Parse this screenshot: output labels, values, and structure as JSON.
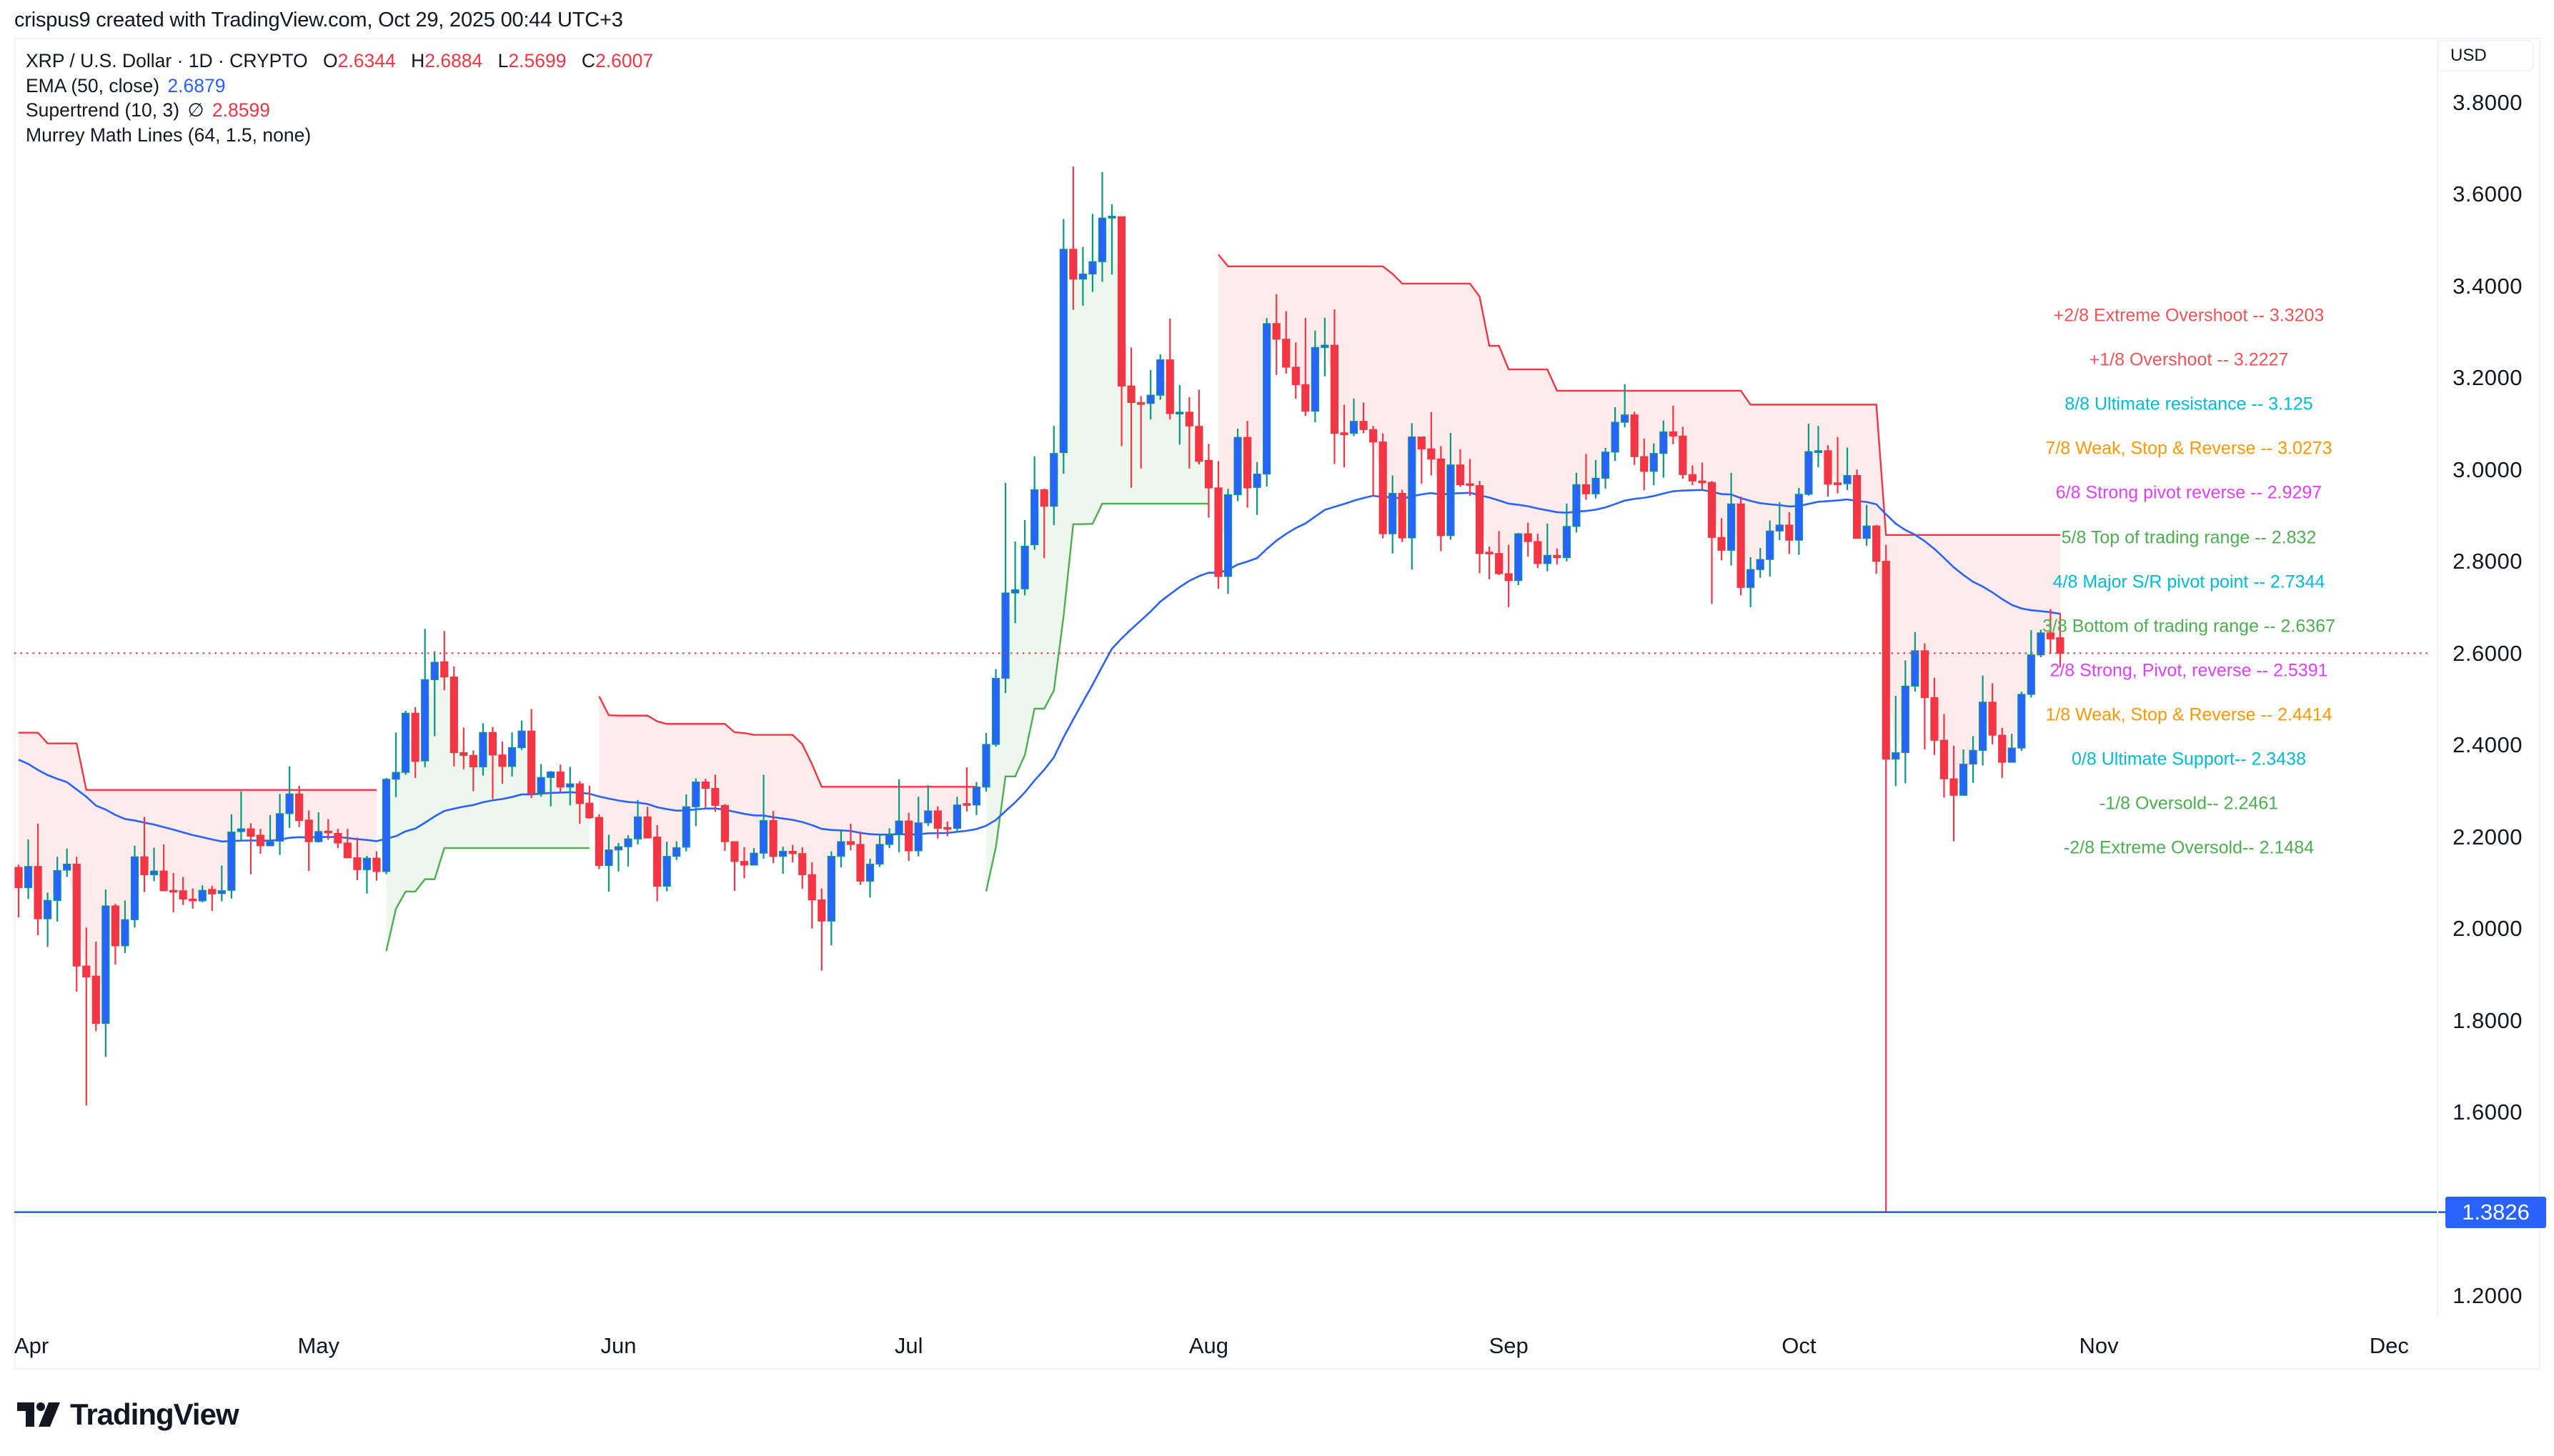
{
  "attribution": "crispus9 created with TradingView.com, Oct 29, 2025 00:44 UTC+3",
  "legend": {
    "symbol": "XRP / U.S. Dollar · 1D · CRYPTO",
    "ohlc": {
      "o_label": "O",
      "o": "2.6344",
      "h_label": "H",
      "h": "2.6884",
      "l_label": "L",
      "l": "2.5699",
      "c_label": "C",
      "c": "2.6007"
    },
    "ema": {
      "label": "EMA (50, close)",
      "value": "2.6879"
    },
    "supertrend": {
      "label": "Supertrend (10, 3)",
      "symbol": "∅",
      "value": "2.8599"
    },
    "murrey": {
      "label": "Murrey Math Lines (64, 1.5, none)"
    }
  },
  "currency": "USD",
  "price_axis": [
    "3.8000",
    "3.6000",
    "3.4000",
    "3.2000",
    "3.0000",
    "2.8000",
    "2.6000",
    "2.4000",
    "2.2000",
    "2.0000",
    "1.8000",
    "1.6000",
    "1.2000"
  ],
  "price_tag": {
    "value": "1.3826",
    "price": 1.3826,
    "color": "#2962ff"
  },
  "time_axis": [
    {
      "label": "Apr",
      "index": 1
    },
    {
      "label": "May",
      "index": 31
    },
    {
      "label": "Jun",
      "index": 62
    },
    {
      "label": "Jul",
      "index": 92
    },
    {
      "label": "Aug",
      "index": 123
    },
    {
      "label": "Sep",
      "index": 154
    },
    {
      "label": "Oct",
      "index": 184
    },
    {
      "label": "Nov",
      "index": 215
    },
    {
      "label": "Dec",
      "index": 245
    }
  ],
  "logo": {
    "text": "TradingView"
  },
  "colors": {
    "up_body": "#2962ff",
    "up_wick": "#089981",
    "down": "#f23645",
    "ema": "#2962ff",
    "st_bear": "#f23645",
    "st_bull": "#4caf50",
    "st_bear_fill": "rgba(242,54,69,0.10)",
    "st_bull_fill": "rgba(76,175,80,0.10)",
    "last_price_line": "#f23645"
  },
  "murrey_lines": [
    {
      "label": "+2/8 Extreme Overshoot --  3.3203",
      "color": "#f05457"
    },
    {
      "label": "+1/8 Overshoot --  3.2227",
      "color": "#f05457"
    },
    {
      "label": "8/8 Ultimate resistance --  3.125",
      "color": "#00bcd4"
    },
    {
      "label": "7/8 Weak, Stop & Reverse --  3.0273",
      "color": "#ff9800"
    },
    {
      "label": "6/8 Strong pivot reverse --  2.9297",
      "color": "#e040fb"
    },
    {
      "label": "5/8 Top of trading range --  2.832",
      "color": "#4caf50"
    },
    {
      "label": "4/8 Major S/R pivot point --  2.7344",
      "color": "#00bcd4"
    },
    {
      "label": "3/8 Bottom of trading range --  2.6367",
      "color": "#4caf50"
    },
    {
      "label": "2/8 Strong, Pivot, reverse --  2.5391",
      "color": "#e040fb"
    },
    {
      "label": "1/8 Weak, Stop & Reverse --  2.4414",
      "color": "#ff9800"
    },
    {
      "label": "0/8 Ultimate Support--  2.3438",
      "color": "#00bcd4"
    },
    {
      "label": "-1/8 Oversold--  2.2461",
      "color": "#4caf50"
    },
    {
      "label": "-2/8 Extreme Oversold--  2.1484",
      "color": "#4caf50"
    }
  ],
  "chart_data": {
    "type": "candlestick",
    "title": "XRP / U.S. Dollar · 1D · CRYPTO",
    "xlabel": "",
    "ylabel": "USD",
    "ylim": [
      1.2,
      3.8
    ],
    "x_start": "2025-03-31",
    "x_end": "2025-10-28",
    "last": {
      "open": 2.6344,
      "high": 2.6884,
      "low": 2.5699,
      "close": 2.6007
    },
    "indicators": {
      "ema": {
        "period": 50,
        "source": "close",
        "last": 2.6879,
        "seed": 2.38
      },
      "supertrend": {
        "atr_period": 10,
        "factor": 3,
        "last": 2.8599
      },
      "murrey": {
        "params": "64, 1.5, none",
        "levels": [
          3.3203,
          3.2227,
          3.125,
          3.0273,
          2.9297,
          2.832,
          2.7344,
          2.6367,
          2.5391,
          2.4414,
          2.3438,
          2.2461,
          2.1484
        ]
      },
      "horizontal_line": 1.3826
    },
    "ohlc": [
      [
        2.134,
        2.14,
        2.025,
        2.09
      ],
      [
        2.09,
        2.195,
        2.065,
        2.136
      ],
      [
        2.136,
        2.229,
        1.986,
        2.022
      ],
      [
        2.022,
        2.079,
        1.961,
        2.062
      ],
      [
        2.062,
        2.157,
        2.016,
        2.127
      ],
      [
        2.128,
        2.175,
        2.113,
        2.141
      ],
      [
        2.141,
        2.157,
        1.863,
        1.919
      ],
      [
        1.919,
        2.003,
        1.615,
        1.895
      ],
      [
        1.897,
        1.972,
        1.777,
        1.794
      ],
      [
        1.794,
        2.086,
        1.721,
        2.05
      ],
      [
        2.05,
        2.055,
        1.922,
        1.963
      ],
      [
        1.963,
        2.062,
        1.947,
        2.02
      ],
      [
        2.02,
        2.181,
        2.003,
        2.157
      ],
      [
        2.157,
        2.244,
        2.08,
        2.118
      ],
      [
        2.118,
        2.177,
        2.104,
        2.126
      ],
      [
        2.126,
        2.184,
        2.083,
        2.083
      ],
      [
        2.084,
        2.122,
        2.036,
        2.081
      ],
      [
        2.083,
        2.113,
        2.052,
        2.065
      ],
      [
        2.065,
        2.088,
        2.044,
        2.061
      ],
      [
        2.061,
        2.095,
        2.058,
        2.084
      ],
      [
        2.086,
        2.094,
        2.039,
        2.076
      ],
      [
        2.077,
        2.138,
        2.06,
        2.083
      ],
      [
        2.084,
        2.25,
        2.066,
        2.211
      ],
      [
        2.212,
        2.3,
        2.191,
        2.218
      ],
      [
        2.218,
        2.23,
        2.119,
        2.202
      ],
      [
        2.204,
        2.218,
        2.164,
        2.181
      ],
      [
        2.181,
        2.248,
        2.18,
        2.191
      ],
      [
        2.191,
        2.294,
        2.161,
        2.251
      ],
      [
        2.251,
        2.354,
        2.22,
        2.294
      ],
      [
        2.294,
        2.312,
        2.222,
        2.236
      ],
      [
        2.237,
        2.258,
        2.126,
        2.19
      ],
      [
        2.19,
        2.254,
        2.188,
        2.212
      ],
      [
        2.213,
        2.239,
        2.194,
        2.211
      ],
      [
        2.208,
        2.218,
        2.176,
        2.187
      ],
      [
        2.187,
        2.218,
        2.154,
        2.155
      ],
      [
        2.155,
        2.199,
        2.106,
        2.129
      ],
      [
        2.129,
        2.159,
        2.077,
        2.154
      ],
      [
        2.154,
        2.169,
        2.105,
        2.125
      ],
      [
        2.125,
        2.329,
        2.119,
        2.326
      ],
      [
        2.326,
        2.428,
        2.287,
        2.341
      ],
      [
        2.341,
        2.475,
        2.336,
        2.47
      ],
      [
        2.47,
        2.483,
        2.329,
        2.365
      ],
      [
        2.366,
        2.654,
        2.352,
        2.543
      ],
      [
        2.543,
        2.605,
        2.42,
        2.581
      ],
      [
        2.582,
        2.649,
        2.52,
        2.549
      ],
      [
        2.549,
        2.572,
        2.354,
        2.384
      ],
      [
        2.384,
        2.439,
        2.348,
        2.378
      ],
      [
        2.378,
        2.389,
        2.3,
        2.353
      ],
      [
        2.353,
        2.448,
        2.334,
        2.428
      ],
      [
        2.428,
        2.44,
        2.283,
        2.379
      ],
      [
        2.379,
        2.408,
        2.316,
        2.354
      ],
      [
        2.354,
        2.428,
        2.332,
        2.395
      ],
      [
        2.395,
        2.454,
        2.39,
        2.431
      ],
      [
        2.431,
        2.479,
        2.285,
        2.295
      ],
      [
        2.295,
        2.359,
        2.288,
        2.33
      ],
      [
        2.33,
        2.344,
        2.267,
        2.342
      ],
      [
        2.342,
        2.358,
        2.297,
        2.309
      ],
      [
        2.309,
        2.353,
        2.269,
        2.316
      ],
      [
        2.316,
        2.322,
        2.229,
        2.273
      ],
      [
        2.274,
        2.312,
        2.24,
        2.242
      ],
      [
        2.243,
        2.25,
        2.13,
        2.138
      ],
      [
        2.138,
        2.205,
        2.081,
        2.172
      ],
      [
        2.172,
        2.187,
        2.125,
        2.179
      ],
      [
        2.179,
        2.204,
        2.136,
        2.196
      ],
      [
        2.196,
        2.281,
        2.184,
        2.244
      ],
      [
        2.244,
        2.266,
        2.198,
        2.198
      ],
      [
        2.2,
        2.226,
        2.06,
        2.093
      ],
      [
        2.093,
        2.19,
        2.082,
        2.158
      ],
      [
        2.158,
        2.191,
        2.15,
        2.177
      ],
      [
        2.178,
        2.293,
        2.169,
        2.266
      ],
      [
        2.266,
        2.328,
        2.224,
        2.32
      ],
      [
        2.32,
        2.327,
        2.262,
        2.306
      ],
      [
        2.306,
        2.336,
        2.255,
        2.269
      ],
      [
        2.269,
        2.272,
        2.17,
        2.19
      ],
      [
        2.19,
        2.191,
        2.083,
        2.147
      ],
      [
        2.147,
        2.178,
        2.11,
        2.139
      ],
      [
        2.139,
        2.176,
        2.138,
        2.165
      ],
      [
        2.165,
        2.336,
        2.153,
        2.236
      ],
      [
        2.236,
        2.257,
        2.143,
        2.158
      ],
      [
        2.158,
        2.179,
        2.12,
        2.169
      ],
      [
        2.169,
        2.183,
        2.145,
        2.164
      ],
      [
        2.164,
        2.178,
        2.087,
        2.118
      ],
      [
        2.118,
        2.145,
        2.001,
        2.063
      ],
      [
        2.063,
        2.088,
        1.909,
        2.017
      ],
      [
        2.017,
        2.169,
        1.964,
        2.158
      ],
      [
        2.158,
        2.216,
        2.134,
        2.19
      ],
      [
        2.19,
        2.229,
        2.171,
        2.184
      ],
      [
        2.184,
        2.212,
        2.096,
        2.104
      ],
      [
        2.104,
        2.153,
        2.068,
        2.141
      ],
      [
        2.141,
        2.205,
        2.135,
        2.184
      ],
      [
        2.184,
        2.219,
        2.176,
        2.205
      ],
      [
        2.205,
        2.326,
        2.167,
        2.235
      ],
      [
        2.235,
        2.253,
        2.148,
        2.17
      ],
      [
        2.17,
        2.288,
        2.158,
        2.231
      ],
      [
        2.231,
        2.313,
        2.224,
        2.257
      ],
      [
        2.257,
        2.267,
        2.197,
        2.219
      ],
      [
        2.221,
        2.234,
        2.202,
        2.219
      ],
      [
        2.219,
        2.288,
        2.21,
        2.27
      ],
      [
        2.273,
        2.352,
        2.256,
        2.27
      ],
      [
        2.27,
        2.32,
        2.248,
        2.309
      ],
      [
        2.309,
        2.427,
        2.299,
        2.402
      ],
      [
        2.402,
        2.566,
        2.397,
        2.546
      ],
      [
        2.546,
        2.972,
        2.514,
        2.732
      ],
      [
        2.732,
        2.844,
        2.666,
        2.739
      ],
      [
        2.741,
        2.891,
        2.727,
        2.834
      ],
      [
        2.837,
        3.03,
        2.826,
        2.957
      ],
      [
        2.957,
        2.959,
        2.808,
        2.921
      ],
      [
        2.921,
        3.096,
        2.88,
        3.036
      ],
      [
        3.038,
        3.547,
        2.992,
        3.481
      ],
      [
        3.481,
        3.661,
        3.349,
        3.416
      ],
      [
        3.416,
        3.486,
        3.358,
        3.427
      ],
      [
        3.427,
        3.558,
        3.388,
        3.454
      ],
      [
        3.454,
        3.649,
        3.41,
        3.549
      ],
      [
        3.549,
        3.579,
        3.426,
        3.553
      ],
      [
        3.552,
        3.552,
        3.052,
        3.183
      ],
      [
        3.183,
        3.267,
        2.961,
        3.147
      ],
      [
        3.147,
        3.161,
        3.003,
        3.143
      ],
      [
        3.145,
        3.218,
        3.11,
        3.163
      ],
      [
        3.163,
        3.252,
        3.153,
        3.24
      ],
      [
        3.24,
        3.33,
        3.11,
        3.123
      ],
      [
        3.123,
        3.185,
        3.055,
        3.126
      ],
      [
        3.126,
        3.159,
        3.003,
        3.096
      ],
      [
        3.095,
        3.175,
        3.012,
        3.019
      ],
      [
        3.021,
        3.057,
        2.896,
        2.961
      ],
      [
        2.961,
        3.019,
        2.741,
        2.768
      ],
      [
        2.768,
        2.959,
        2.73,
        2.946
      ],
      [
        2.946,
        3.09,
        2.932,
        3.071
      ],
      [
        3.071,
        3.107,
        2.918,
        2.961
      ],
      [
        2.962,
        3.017,
        2.902,
        2.991
      ],
      [
        2.991,
        3.331,
        2.964,
        3.319
      ],
      [
        3.319,
        3.383,
        3.207,
        3.285
      ],
      [
        3.285,
        3.346,
        3.21,
        3.224
      ],
      [
        3.224,
        3.278,
        3.155,
        3.186
      ],
      [
        3.186,
        3.331,
        3.118,
        3.128
      ],
      [
        3.128,
        3.304,
        3.104,
        3.267
      ],
      [
        3.267,
        3.332,
        3.204,
        3.272
      ],
      [
        3.272,
        3.35,
        3.013,
        3.08
      ],
      [
        3.081,
        3.142,
        3.006,
        3.08
      ],
      [
        3.08,
        3.156,
        3.074,
        3.106
      ],
      [
        3.106,
        3.147,
        3.08,
        3.088
      ],
      [
        3.088,
        3.096,
        2.943,
        3.061
      ],
      [
        3.061,
        3.08,
        2.851,
        2.861
      ],
      [
        2.861,
        2.988,
        2.818,
        2.949
      ],
      [
        2.949,
        2.957,
        2.843,
        2.852
      ],
      [
        2.852,
        3.102,
        2.783,
        3.072
      ],
      [
        3.072,
        3.072,
        2.97,
        3.046
      ],
      [
        3.046,
        3.126,
        2.988,
        3.024
      ],
      [
        3.024,
        3.052,
        2.823,
        2.857
      ],
      [
        2.857,
        3.081,
        2.848,
        3.011
      ],
      [
        3.011,
        3.045,
        2.963,
        2.968
      ],
      [
        2.97,
        3.024,
        2.944,
        2.968
      ],
      [
        2.966,
        2.976,
        2.775,
        2.818
      ],
      [
        2.821,
        2.833,
        2.762,
        2.818
      ],
      [
        2.818,
        2.867,
        2.771,
        2.774
      ],
      [
        2.774,
        2.837,
        2.701,
        2.759
      ],
      [
        2.759,
        2.863,
        2.749,
        2.861
      ],
      [
        2.861,
        2.885,
        2.811,
        2.844
      ],
      [
        2.844,
        2.861,
        2.786,
        2.796
      ],
      [
        2.796,
        2.883,
        2.779,
        2.814
      ],
      [
        2.814,
        2.829,
        2.794,
        2.809
      ],
      [
        2.809,
        2.927,
        2.801,
        2.877
      ],
      [
        2.877,
        2.994,
        2.864,
        2.968
      ],
      [
        2.968,
        3.035,
        2.935,
        2.948
      ],
      [
        2.948,
        3.022,
        2.938,
        2.982
      ],
      [
        2.982,
        3.048,
        2.959,
        3.039
      ],
      [
        3.039,
        3.137,
        3.02,
        3.104
      ],
      [
        3.104,
        3.187,
        3.093,
        3.12
      ],
      [
        3.12,
        3.127,
        3.011,
        3.029
      ],
      [
        3.029,
        3.068,
        2.956,
        2.997
      ],
      [
        2.997,
        3.058,
        2.967,
        3.036
      ],
      [
        3.036,
        3.108,
        2.983,
        3.083
      ],
      [
        3.083,
        3.14,
        3.056,
        3.074
      ],
      [
        3.074,
        3.094,
        2.981,
        2.99
      ],
      [
        2.99,
        3.01,
        2.967,
        2.976
      ],
      [
        2.976,
        3.016,
        2.956,
        2.973
      ],
      [
        2.973,
        2.976,
        2.708,
        2.853
      ],
      [
        2.853,
        2.895,
        2.803,
        2.825
      ],
      [
        2.825,
        2.994,
        2.792,
        2.926
      ],
      [
        2.926,
        2.942,
        2.727,
        2.744
      ],
      [
        2.744,
        2.81,
        2.701,
        2.783
      ],
      [
        2.783,
        2.83,
        2.765,
        2.805
      ],
      [
        2.805,
        2.89,
        2.768,
        2.867
      ],
      [
        2.867,
        2.93,
        2.847,
        2.88
      ],
      [
        2.88,
        2.908,
        2.817,
        2.847
      ],
      [
        2.847,
        2.961,
        2.815,
        2.947
      ],
      [
        2.947,
        3.101,
        2.944,
        3.04
      ],
      [
        3.04,
        3.096,
        3.006,
        3.042
      ],
      [
        3.042,
        3.054,
        2.942,
        2.969
      ],
      [
        2.972,
        3.072,
        2.949,
        2.969
      ],
      [
        2.97,
        3.049,
        2.956,
        2.988
      ],
      [
        2.988,
        3.001,
        2.851,
        2.851
      ],
      [
        2.851,
        2.924,
        2.835,
        2.878
      ],
      [
        2.878,
        2.88,
        2.774,
        2.801
      ],
      [
        2.801,
        2.837,
        1.3826,
        2.37
      ],
      [
        2.37,
        2.508,
        2.311,
        2.384
      ],
      [
        2.384,
        2.585,
        2.317,
        2.529
      ],
      [
        2.529,
        2.647,
        2.517,
        2.606
      ],
      [
        2.606,
        2.622,
        2.391,
        2.504
      ],
      [
        2.504,
        2.547,
        2.379,
        2.411
      ],
      [
        2.411,
        2.468,
        2.286,
        2.327
      ],
      [
        2.327,
        2.399,
        2.191,
        2.291
      ],
      [
        2.291,
        2.391,
        2.291,
        2.359
      ],
      [
        2.359,
        2.42,
        2.318,
        2.389
      ],
      [
        2.389,
        2.552,
        2.356,
        2.494
      ],
      [
        2.494,
        2.535,
        2.402,
        2.422
      ],
      [
        2.422,
        2.438,
        2.329,
        2.363
      ],
      [
        2.363,
        2.425,
        2.363,
        2.394
      ],
      [
        2.394,
        2.517,
        2.388,
        2.511
      ],
      [
        2.511,
        2.651,
        2.504,
        2.597
      ],
      [
        2.597,
        2.652,
        2.592,
        2.645
      ],
      [
        2.645,
        2.697,
        2.599,
        2.632
      ],
      [
        2.6344,
        2.6884,
        2.5699,
        2.6007
      ]
    ]
  }
}
